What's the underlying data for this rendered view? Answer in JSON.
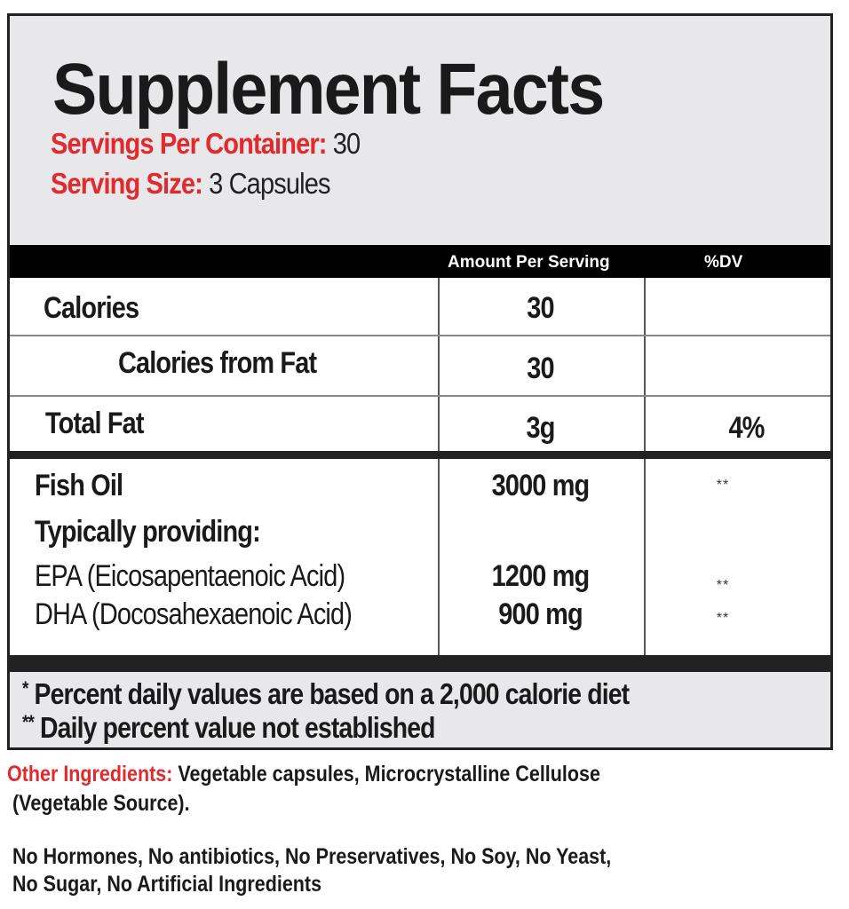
{
  "title": "Supplement Facts",
  "servings_per_container": {
    "label": "Servings Per Container:",
    "value": "30"
  },
  "serving_size": {
    "label": "Serving Size:",
    "value": "3 Capsules"
  },
  "columns": {
    "amount": "Amount Per Serving",
    "dv": "%DV"
  },
  "rows": [
    {
      "name": "Calories",
      "amount": "30",
      "dv": ""
    },
    {
      "name": "Calories from Fat",
      "amount": "30",
      "dv": ""
    },
    {
      "name": "Total Fat",
      "amount": "3g",
      "dv": "4%"
    }
  ],
  "fish_oil": {
    "name": "Fish Oil",
    "amount": "3000 mg",
    "dv": "**"
  },
  "typically_providing": "Typically providing:",
  "sub_rows": [
    {
      "name": "EPA (Eicosapentaenoic Acid)",
      "amount": "1200 mg",
      "dv": "**"
    },
    {
      "name": "DHA (Docosahexaenoic Acid)",
      "amount": "900 mg",
      "dv": "**"
    }
  ],
  "footnotes": [
    {
      "mark": "*",
      "text": "Percent daily values are based on a 2,000 calorie diet"
    },
    {
      "mark": "**",
      "text": "Daily percent value not established"
    }
  ],
  "other_ingredients": {
    "label": "Other Ingredients:",
    "line1": "Vegetable capsules, Microcrystalline Cellulose",
    "line2": "(Vegetable Source)."
  },
  "free_from": {
    "line1": "No Hormones, No antibiotics, No Preservatives, No Soy, No Yeast,",
    "line2": "No Sugar, No Artificial Ingredients"
  },
  "colors": {
    "accent": "#e02a2e",
    "header_bg": "#e8e8ea",
    "bar": "#000000"
  }
}
